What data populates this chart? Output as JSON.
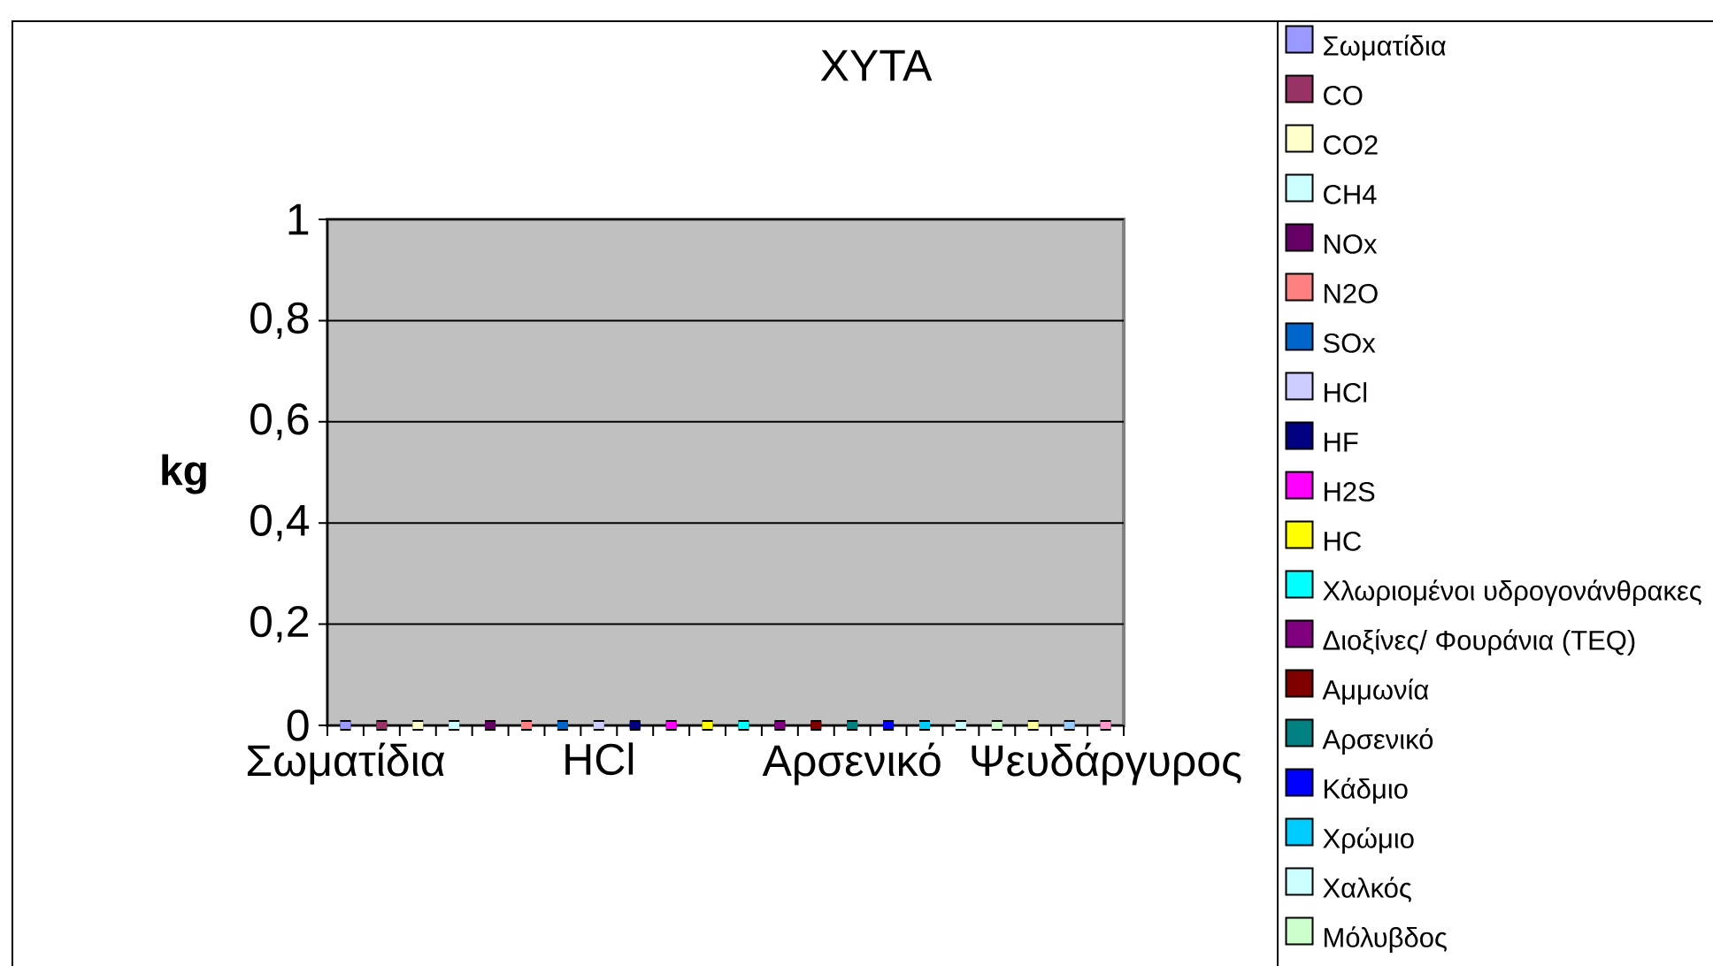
{
  "chart_data": {
    "type": "bar",
    "title": "ΧΥΤΑ",
    "ylabel": "kg",
    "categories": [
      "Σωματίδια",
      null,
      null,
      null,
      null,
      null,
      null,
      "HCl",
      null,
      null,
      null,
      null,
      null,
      null,
      "Αρσενικό",
      null,
      null,
      null,
      null,
      null,
      null,
      "Ψευδάργυρος"
    ],
    "series": [
      {
        "name": "Σωματίδια",
        "color": "#9999ff",
        "values": [
          0,
          null,
          null,
          null,
          null,
          null,
          null,
          null,
          null,
          null,
          null,
          null,
          null,
          null,
          null,
          null,
          null,
          null,
          null,
          null,
          null,
          null
        ]
      },
      {
        "name": "CO",
        "color": "#993366",
        "values": [
          null,
          0,
          null,
          null,
          null,
          null,
          null,
          null,
          null,
          null,
          null,
          null,
          null,
          null,
          null,
          null,
          null,
          null,
          null,
          null,
          null,
          null
        ]
      },
      {
        "name": "CO2",
        "color": "#ffffcc",
        "values": [
          null,
          null,
          0,
          null,
          null,
          null,
          null,
          null,
          null,
          null,
          null,
          null,
          null,
          null,
          null,
          null,
          null,
          null,
          null,
          null,
          null,
          null
        ]
      },
      {
        "name": "CH4",
        "color": "#ccffff",
        "values": [
          null,
          null,
          null,
          0,
          null,
          null,
          null,
          null,
          null,
          null,
          null,
          null,
          null,
          null,
          null,
          null,
          null,
          null,
          null,
          null,
          null,
          null
        ]
      },
      {
        "name": "NOx",
        "color": "#660066",
        "values": [
          null,
          null,
          null,
          null,
          0,
          null,
          null,
          null,
          null,
          null,
          null,
          null,
          null,
          null,
          null,
          null,
          null,
          null,
          null,
          null,
          null,
          null
        ]
      },
      {
        "name": "N2O",
        "color": "#ff8080",
        "values": [
          null,
          null,
          null,
          null,
          null,
          0,
          null,
          null,
          null,
          null,
          null,
          null,
          null,
          null,
          null,
          null,
          null,
          null,
          null,
          null,
          null,
          null
        ]
      },
      {
        "name": "SOx",
        "color": "#0066cc",
        "values": [
          null,
          null,
          null,
          null,
          null,
          null,
          0,
          null,
          null,
          null,
          null,
          null,
          null,
          null,
          null,
          null,
          null,
          null,
          null,
          null,
          null,
          null
        ]
      },
      {
        "name": "HCl",
        "color": "#ccccff",
        "values": [
          null,
          null,
          null,
          null,
          null,
          null,
          null,
          0,
          null,
          null,
          null,
          null,
          null,
          null,
          null,
          null,
          null,
          null,
          null,
          null,
          null,
          null
        ]
      },
      {
        "name": "HF",
        "color": "#000080",
        "values": [
          null,
          null,
          null,
          null,
          null,
          null,
          null,
          null,
          0,
          null,
          null,
          null,
          null,
          null,
          null,
          null,
          null,
          null,
          null,
          null,
          null,
          null
        ]
      },
      {
        "name": "H2S",
        "color": "#ff00ff",
        "values": [
          null,
          null,
          null,
          null,
          null,
          null,
          null,
          null,
          null,
          0,
          null,
          null,
          null,
          null,
          null,
          null,
          null,
          null,
          null,
          null,
          null,
          null
        ]
      },
      {
        "name": "HC",
        "color": "#ffff00",
        "values": [
          null,
          null,
          null,
          null,
          null,
          null,
          null,
          null,
          null,
          null,
          0,
          null,
          null,
          null,
          null,
          null,
          null,
          null,
          null,
          null,
          null,
          null
        ]
      },
      {
        "name": "Χλωριομένοι υδρογονάνθρακες",
        "color": "#00ffff",
        "values": [
          null,
          null,
          null,
          null,
          null,
          null,
          null,
          null,
          null,
          null,
          null,
          0,
          null,
          null,
          null,
          null,
          null,
          null,
          null,
          null,
          null,
          null
        ]
      },
      {
        "name": "Διοξίνες/ Φουράνια (TEQ)",
        "color": "#800080",
        "values": [
          null,
          null,
          null,
          null,
          null,
          null,
          null,
          null,
          null,
          null,
          null,
          null,
          0,
          null,
          null,
          null,
          null,
          null,
          null,
          null,
          null,
          null
        ]
      },
      {
        "name": "Αμμωνία",
        "color": "#800000",
        "values": [
          null,
          null,
          null,
          null,
          null,
          null,
          null,
          null,
          null,
          null,
          null,
          null,
          null,
          0,
          null,
          null,
          null,
          null,
          null,
          null,
          null,
          null
        ]
      },
      {
        "name": "Αρσενικό",
        "color": "#008080",
        "values": [
          null,
          null,
          null,
          null,
          null,
          null,
          null,
          null,
          null,
          null,
          null,
          null,
          null,
          null,
          0,
          null,
          null,
          null,
          null,
          null,
          null,
          null
        ]
      },
      {
        "name": "Κάδμιο",
        "color": "#0000ff",
        "values": [
          null,
          null,
          null,
          null,
          null,
          null,
          null,
          null,
          null,
          null,
          null,
          null,
          null,
          null,
          null,
          0,
          null,
          null,
          null,
          null,
          null,
          null
        ]
      },
      {
        "name": "Χρώμιο",
        "color": "#00ccff",
        "values": [
          null,
          null,
          null,
          null,
          null,
          null,
          null,
          null,
          null,
          null,
          null,
          null,
          null,
          null,
          null,
          null,
          0,
          null,
          null,
          null,
          null,
          null
        ]
      },
      {
        "name": "Χαλκός",
        "color": "#ccffff",
        "values": [
          null,
          null,
          null,
          null,
          null,
          null,
          null,
          null,
          null,
          null,
          null,
          null,
          null,
          null,
          null,
          null,
          null,
          0,
          null,
          null,
          null,
          null
        ]
      },
      {
        "name": "Μόλυβδος",
        "color": "#ccffcc",
        "values": [
          null,
          null,
          null,
          null,
          null,
          null,
          null,
          null,
          null,
          null,
          null,
          null,
          null,
          null,
          null,
          null,
          null,
          null,
          0,
          null,
          null,
          null
        ]
      },
      {
        "color": "#ffff99",
        "values": [
          null,
          null,
          null,
          null,
          null,
          null,
          null,
          null,
          null,
          null,
          null,
          null,
          null,
          null,
          null,
          null,
          null,
          null,
          null,
          0,
          null,
          null
        ]
      },
      {
        "color": "#99ccff",
        "values": [
          null,
          null,
          null,
          null,
          null,
          null,
          null,
          null,
          null,
          null,
          null,
          null,
          null,
          null,
          null,
          null,
          null,
          null,
          null,
          null,
          0,
          null
        ]
      },
      {
        "color": "#ff99cc",
        "values": [
          null,
          null,
          null,
          null,
          null,
          null,
          null,
          null,
          null,
          null,
          null,
          null,
          null,
          null,
          null,
          null,
          null,
          null,
          null,
          null,
          null,
          0
        ]
      }
    ],
    "ylim": [
      0,
      1
    ],
    "yticks": [
      0,
      {
        "value": 0.2,
        "label": "0,2"
      },
      {
        "value": 0.4,
        "label": "0,4"
      },
      {
        "value": 0.6,
        "label": "0,6"
      },
      {
        "value": 0.8,
        "label": "0,8"
      },
      1
    ],
    "grid": "y",
    "legend": "right"
  }
}
